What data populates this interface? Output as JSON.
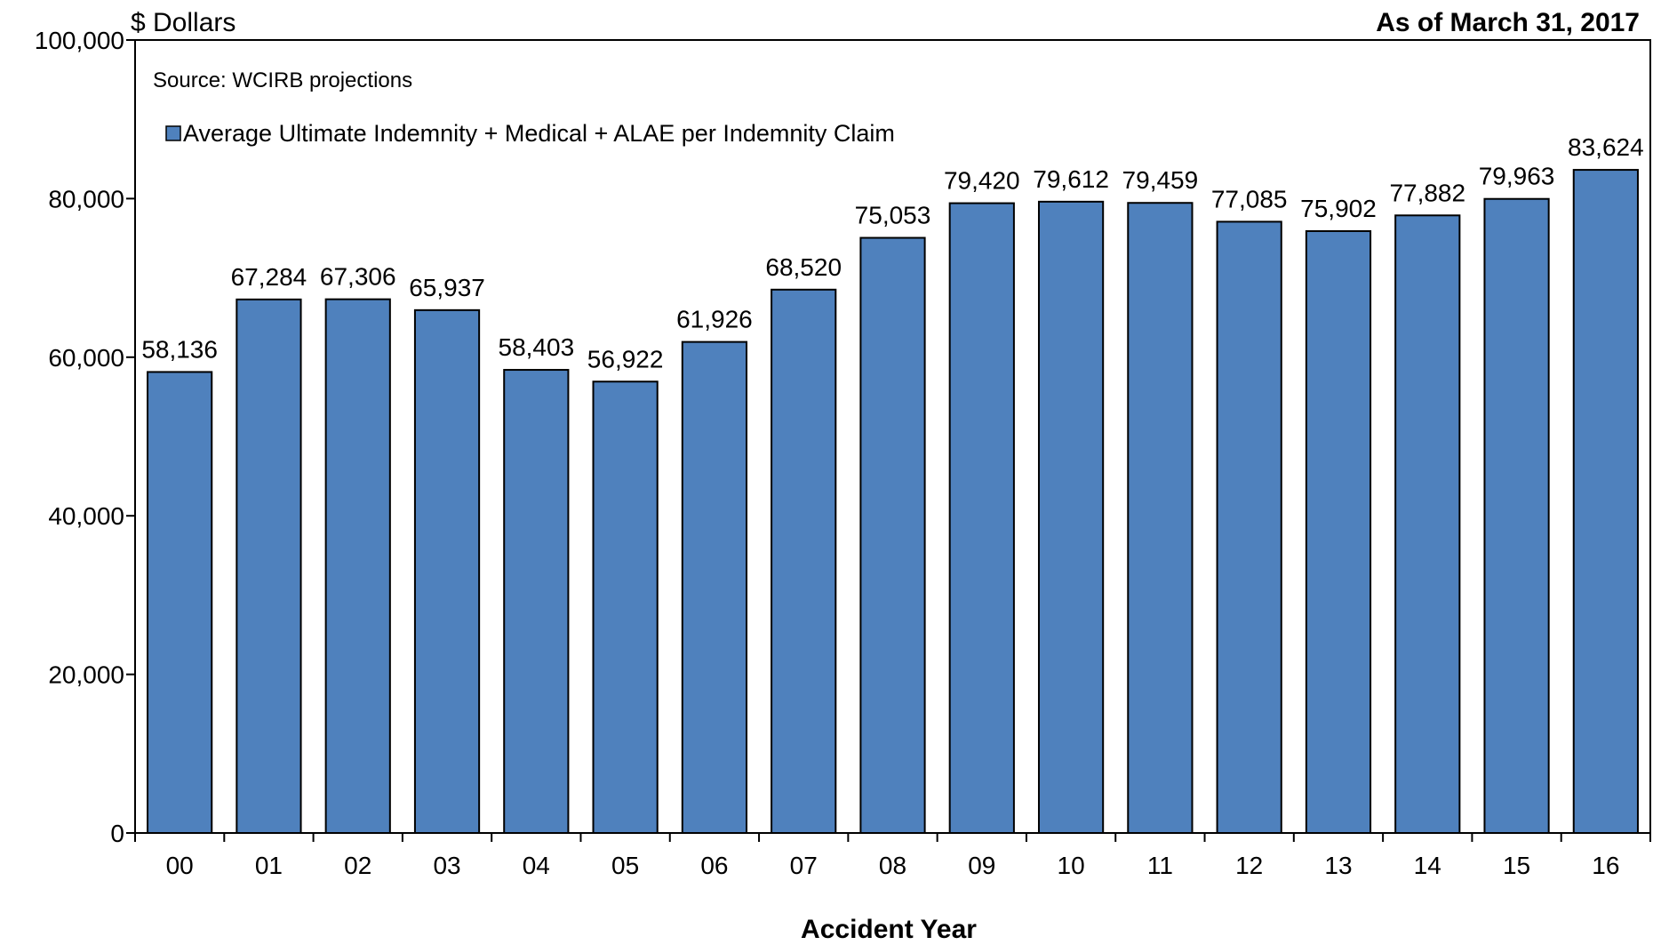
{
  "chart_data": {
    "type": "bar",
    "ylabel": "$ Dollars",
    "as_of": "As of March 31, 2017",
    "source": "Source: WCIRB projections",
    "xlabel": "Accident Year",
    "legend_position": "top-left",
    "grid": false,
    "ylim": [
      0,
      100000
    ],
    "yticks": [
      "0",
      "20,000",
      "40,000",
      "60,000",
      "80,000",
      "100,000"
    ],
    "categories": [
      "00",
      "01",
      "02",
      "03",
      "04",
      "05",
      "06",
      "07",
      "08",
      "09",
      "10",
      "11",
      "12",
      "13",
      "14",
      "15",
      "16"
    ],
    "series": [
      {
        "name": "Average Ultimate Indemnity + Medical + ALAE per Indemnity Claim",
        "color": "#4f81bd",
        "values": [
          58136,
          67284,
          67306,
          65937,
          58403,
          56922,
          61926,
          68520,
          75053,
          79420,
          79612,
          79459,
          77085,
          75902,
          77882,
          79963,
          83624
        ],
        "labels": [
          "58,136",
          "67,284",
          "67,306",
          "65,937",
          "58,403",
          "56,922",
          "61,926",
          "68,520",
          "75,053",
          "79,420",
          "79,612",
          "79,459",
          "77,085",
          "75,902",
          "77,882",
          "79,963",
          "83,624"
        ]
      }
    ]
  }
}
